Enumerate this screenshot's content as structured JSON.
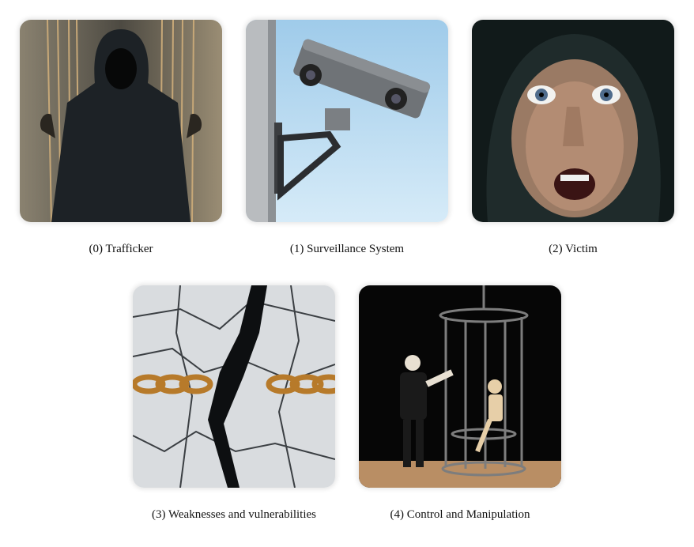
{
  "panels": [
    {
      "label": "(0) Trafficker",
      "icon": "trafficker-image"
    },
    {
      "label": "(1) Surveillance System",
      "icon": "surveillance-camera-image"
    },
    {
      "label": "(2) Victim",
      "icon": "victim-face-image"
    },
    {
      "label": "(3) Weaknesses and vulnerabilities",
      "icon": "cracked-chain-image"
    },
    {
      "label": "(4) Control and Manipulation",
      "icon": "puppet-cage-image"
    }
  ]
}
